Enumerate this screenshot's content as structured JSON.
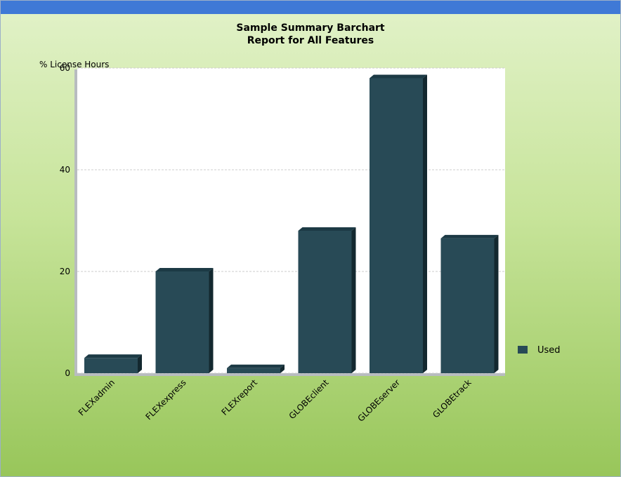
{
  "chart_data": {
    "type": "bar",
    "title": "Sample Summary Barchart",
    "subtitle": "Report for All Features",
    "ylabel": "% License Hours",
    "xlabel": "",
    "ylim": [
      0,
      60
    ],
    "yticks": [
      0,
      20,
      40,
      60
    ],
    "grid": true,
    "legend_position": "right",
    "categories": [
      "FLEXadmin",
      "FLEXexpress",
      "FLEXreport",
      "GLOBEclient",
      "GLOBEserver",
      "GLOBEtrack"
    ],
    "series": [
      {
        "name": "Used",
        "color": "#284a56",
        "values": [
          3,
          20,
          1,
          28,
          58,
          26.5
        ]
      }
    ]
  },
  "colors": {
    "topbar": "#3f79d6",
    "bar_front": "#284a56",
    "bar_top": "#1c3a45",
    "bar_side": "#13282f",
    "plot_bg": "#ffffff",
    "grid": "#cccccc"
  }
}
